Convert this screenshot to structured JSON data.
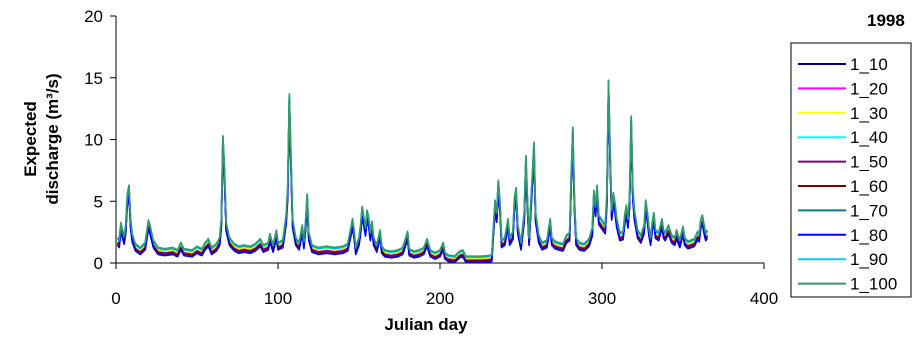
{
  "chart_data": {
    "type": "line",
    "title": "1998",
    "xlabel": "Julian day",
    "ylabel": [
      "Expected",
      "discharge (m³/s)"
    ],
    "xlim": [
      0,
      400
    ],
    "ylim": [
      0,
      20
    ],
    "xticks": [
      0,
      100,
      200,
      300,
      400
    ],
    "yticks": [
      0,
      5,
      10,
      15,
      20
    ],
    "grid": false,
    "legend_position": "right",
    "x_range_days": [
      1,
      365
    ],
    "base_profile": [
      [
        1,
        2.0
      ],
      [
        2,
        1.8
      ],
      [
        3,
        3.2
      ],
      [
        4,
        2.6
      ],
      [
        5,
        2.1
      ],
      [
        6,
        3.0
      ],
      [
        7,
        5.5
      ],
      [
        8,
        6.2
      ],
      [
        9,
        3.5
      ],
      [
        10,
        2.3
      ],
      [
        12,
        1.5
      ],
      [
        15,
        1.2
      ],
      [
        18,
        1.6
      ],
      [
        20,
        3.4
      ],
      [
        21,
        3.0
      ],
      [
        23,
        1.8
      ],
      [
        26,
        1.2
      ],
      [
        30,
        1.1
      ],
      [
        35,
        1.2
      ],
      [
        38,
        1.0
      ],
      [
        40,
        1.6
      ],
      [
        42,
        1.1
      ],
      [
        47,
        1.0
      ],
      [
        50,
        1.3
      ],
      [
        53,
        1.1
      ],
      [
        55,
        1.6
      ],
      [
        57,
        1.9
      ],
      [
        59,
        1.2
      ],
      [
        62,
        1.5
      ],
      [
        64,
        2.0
      ],
      [
        65,
        3.5
      ],
      [
        66,
        10.2
      ],
      [
        67,
        7.5
      ],
      [
        68,
        3.2
      ],
      [
        70,
        2.0
      ],
      [
        73,
        1.5
      ],
      [
        76,
        1.3
      ],
      [
        79,
        1.4
      ],
      [
        83,
        1.3
      ],
      [
        86,
        1.5
      ],
      [
        89,
        1.9
      ],
      [
        91,
        1.4
      ],
      [
        94,
        1.6
      ],
      [
        95,
        2.3
      ],
      [
        97,
        1.4
      ],
      [
        99,
        2.6
      ],
      [
        100,
        1.6
      ],
      [
        103,
        1.8
      ],
      [
        105,
        3.8
      ],
      [
        106,
        6.0
      ],
      [
        107,
        13.6
      ],
      [
        108,
        8.5
      ],
      [
        109,
        3.5
      ],
      [
        111,
        2.0
      ],
      [
        113,
        1.6
      ],
      [
        115,
        3.0
      ],
      [
        116,
        1.7
      ],
      [
        117,
        3.2
      ],
      [
        118,
        5.5
      ],
      [
        119,
        2.4
      ],
      [
        121,
        1.4
      ],
      [
        125,
        1.2
      ],
      [
        130,
        1.3
      ],
      [
        135,
        1.2
      ],
      [
        140,
        1.3
      ],
      [
        143,
        1.5
      ],
      [
        145,
        2.8
      ],
      [
        146,
        3.5
      ],
      [
        147,
        2.6
      ],
      [
        148,
        1.2
      ],
      [
        150,
        2.0
      ],
      [
        151,
        3.0
      ],
      [
        152,
        4.5
      ],
      [
        153,
        3.6
      ],
      [
        154,
        2.8
      ],
      [
        155,
        4.2
      ],
      [
        156,
        3.6
      ],
      [
        157,
        2.4
      ],
      [
        158,
        3.3
      ],
      [
        159,
        2.0
      ],
      [
        161,
        1.4
      ],
      [
        163,
        2.6
      ],
      [
        164,
        1.3
      ],
      [
        166,
        1.0
      ],
      [
        170,
        0.9
      ],
      [
        174,
        1.0
      ],
      [
        177,
        1.2
      ],
      [
        180,
        2.5
      ],
      [
        181,
        1.1
      ],
      [
        184,
        0.9
      ],
      [
        187,
        1.0
      ],
      [
        190,
        1.2
      ],
      [
        192,
        1.9
      ],
      [
        194,
        1.0
      ],
      [
        197,
        0.8
      ],
      [
        200,
        1.0
      ],
      [
        202,
        1.6
      ],
      [
        203,
        0.8
      ],
      [
        205,
        0.6
      ],
      [
        209,
        0.5
      ],
      [
        212,
        0.9
      ],
      [
        214,
        1.0
      ],
      [
        216,
        0.5
      ],
      [
        220,
        0.5
      ],
      [
        225,
        0.5
      ],
      [
        230,
        0.55
      ],
      [
        232,
        0.6
      ],
      [
        233,
        3.0
      ],
      [
        234,
        5.0
      ],
      [
        235,
        4.0
      ],
      [
        236,
        6.6
      ],
      [
        237,
        5.0
      ],
      [
        238,
        1.8
      ],
      [
        240,
        2.0
      ],
      [
        242,
        3.5
      ],
      [
        243,
        2.0
      ],
      [
        245,
        2.5
      ],
      [
        246,
        5.2
      ],
      [
        247,
        6.0
      ],
      [
        248,
        3.0
      ],
      [
        250,
        1.6
      ],
      [
        252,
        4.0
      ],
      [
        253,
        8.6
      ],
      [
        254,
        5.0
      ],
      [
        255,
        2.0
      ],
      [
        256,
        4.6
      ],
      [
        257,
        7.0
      ],
      [
        258,
        9.7
      ],
      [
        259,
        4.0
      ],
      [
        261,
        2.2
      ],
      [
        263,
        1.6
      ],
      [
        266,
        1.8
      ],
      [
        268,
        3.5
      ],
      [
        269,
        2.0
      ],
      [
        271,
        1.7
      ],
      [
        273,
        1.6
      ],
      [
        276,
        1.5
      ],
      [
        278,
        2.2
      ],
      [
        280,
        2.4
      ],
      [
        281,
        7.0
      ],
      [
        282,
        10.9
      ],
      [
        283,
        5.0
      ],
      [
        284,
        2.0
      ],
      [
        286,
        1.6
      ],
      [
        289,
        1.5
      ],
      [
        292,
        1.9
      ],
      [
        294,
        2.8
      ],
      [
        295,
        5.8
      ],
      [
        296,
        4.5
      ],
      [
        297,
        6.2
      ],
      [
        298,
        3.8
      ],
      [
        300,
        3.4
      ],
      [
        302,
        3.0
      ],
      [
        303,
        5.5
      ],
      [
        304,
        14.7
      ],
      [
        305,
        9.0
      ],
      [
        306,
        4.2
      ],
      [
        307,
        5.6
      ],
      [
        308,
        4.8
      ],
      [
        309,
        3.6
      ],
      [
        311,
        2.4
      ],
      [
        313,
        2.5
      ],
      [
        314,
        3.8
      ],
      [
        315,
        4.6
      ],
      [
        316,
        3.5
      ],
      [
        317,
        5.2
      ],
      [
        318,
        11.8
      ],
      [
        319,
        6.0
      ],
      [
        320,
        4.2
      ],
      [
        322,
        2.6
      ],
      [
        324,
        2.2
      ],
      [
        326,
        3.0
      ],
      [
        327,
        5.0
      ],
      [
        328,
        4.0
      ],
      [
        329,
        2.8
      ],
      [
        330,
        2.0
      ],
      [
        331,
        3.2
      ],
      [
        332,
        4.0
      ],
      [
        333,
        2.6
      ],
      [
        335,
        2.4
      ],
      [
        337,
        3.5
      ],
      [
        338,
        2.6
      ],
      [
        339,
        2.4
      ],
      [
        341,
        3.0
      ],
      [
        343,
        2.2
      ],
      [
        345,
        2.0
      ],
      [
        346,
        2.6
      ],
      [
        348,
        1.8
      ],
      [
        350,
        2.9
      ],
      [
        351,
        2.0
      ],
      [
        353,
        1.7
      ],
      [
        355,
        1.8
      ],
      [
        357,
        1.9
      ],
      [
        359,
        2.5
      ],
      [
        360,
        2.3
      ],
      [
        361,
        3.5
      ],
      [
        362,
        3.8
      ],
      [
        363,
        3.0
      ],
      [
        364,
        2.4
      ],
      [
        365,
        2.6
      ]
    ],
    "series": [
      {
        "name": "1_10",
        "color": "#000080",
        "offset": -0.75
      },
      {
        "name": "1_20",
        "color": "#FF00FF",
        "offset": -0.45
      },
      {
        "name": "1_30",
        "color": "#FFFF00",
        "offset": -0.25
      },
      {
        "name": "1_40",
        "color": "#00FFFF",
        "offset": -0.1
      },
      {
        "name": "1_50",
        "color": "#800080",
        "offset": -0.6
      },
      {
        "name": "1_60",
        "color": "#800000",
        "offset": -0.55
      },
      {
        "name": "1_70",
        "color": "#008080",
        "offset": 0.0
      },
      {
        "name": "1_80",
        "color": "#0000FF",
        "offset": -0.85
      },
      {
        "name": "1_90",
        "color": "#00CCFF",
        "offset": 0.05
      },
      {
        "name": "1_100",
        "color": "#339966",
        "offset": 0.1
      }
    ]
  }
}
